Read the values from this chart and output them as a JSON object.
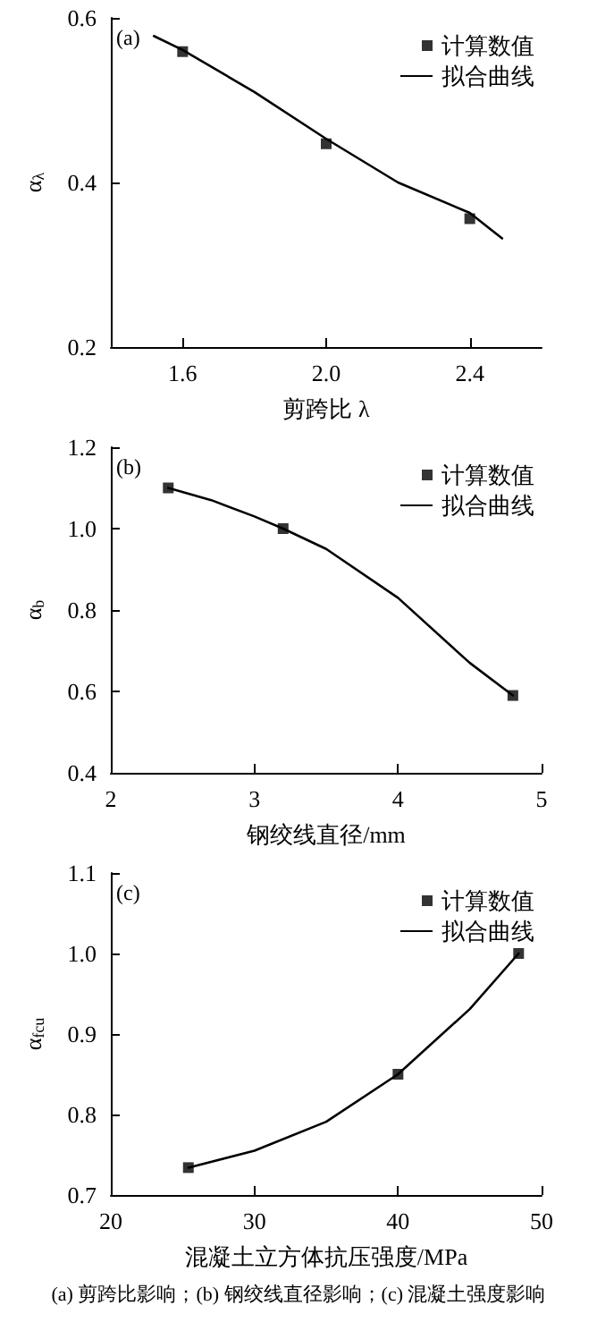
{
  "chart_data": [
    {
      "type": "line",
      "title": "(a)",
      "xlabel": "剪跨比 λ",
      "ylabel": "α$_{λ}$",
      "xlim": [
        1.4,
        2.6
      ],
      "xticks": [
        1.6,
        {
          "value": 2,
          "label": "2.0"
        },
        2.4
      ],
      "ylim": [
        0.2,
        0.6
      ],
      "yticks": [
        0.2,
        0.4,
        0.6
      ],
      "grid": false,
      "legend": "top right",
      "series": [
        {
          "name": "计算数值",
          "type": "scatter",
          "marker": "square",
          "color": "#000000",
          "x": [
            1.6,
            2.0,
            2.4
          ],
          "values": [
            0.559,
            0.447,
            0.356
          ]
        },
        {
          "name": "拟合曲线",
          "type": "line",
          "marker": "none",
          "line_style": "solid",
          "color": "#000000",
          "x": [
            1.52,
            1.6,
            1.8,
            2.0,
            2.2,
            2.4,
            2.49
          ],
          "values": [
            0.578,
            0.561,
            0.51,
            0.453,
            0.4,
            0.363,
            0.332
          ]
        }
      ]
    },
    {
      "type": "line",
      "title": "(b)",
      "xlabel": "钢绞线直径/mm",
      "ylabel": "α$_{b}$",
      "xlim": [
        2,
        5
      ],
      "xticks": [
        2,
        3,
        4,
        5
      ],
      "ylim": [
        0.4,
        1.2
      ],
      "yticks": [
        0.4,
        0.6,
        0.8,
        {
          "value": 1,
          "label": "1.0"
        },
        1.2
      ],
      "grid": false,
      "legend": "top right",
      "series": [
        {
          "name": "计算数值",
          "type": "scatter",
          "marker": "square",
          "color": "#000000",
          "x": [
            2.4,
            3.2,
            4.8
          ],
          "values": [
            1.1,
            1.0,
            0.59
          ]
        },
        {
          "name": "拟合曲线",
          "type": "line",
          "marker": "none",
          "line_style": "solid",
          "color": "#000000",
          "x": [
            2.4,
            2.7,
            3.0,
            3.2,
            3.5,
            4.0,
            4.5,
            4.8
          ],
          "values": [
            1.1,
            1.07,
            1.03,
            1.0,
            0.95,
            0.83,
            0.67,
            0.59
          ]
        }
      ]
    },
    {
      "type": "line",
      "title": "(c)",
      "xlabel": "混凝土立方体抗压强度/MPa",
      "ylabel": "α$_{fcu}$",
      "xlim": [
        20,
        50
      ],
      "xticks": [
        20,
        30,
        40,
        50
      ],
      "ylim": [
        0.7,
        1.1
      ],
      "yticks": [
        0.7,
        0.8,
        0.9,
        {
          "value": 1,
          "label": "1.0"
        },
        1.1
      ],
      "grid": false,
      "legend": "top right",
      "annotations": [
        "(a) 剪跨比影响；(b) 钢绞线直径影响；(c) 混凝土强度影响"
      ],
      "series": [
        {
          "name": "计算数值",
          "type": "scatter",
          "marker": "square",
          "color": "#000000",
          "x": [
            25.4,
            40,
            48.4
          ],
          "values": [
            0.734,
            0.85,
            1.0
          ]
        },
        {
          "name": "拟合曲线",
          "type": "line",
          "marker": "none",
          "line_style": "solid",
          "color": "#000000",
          "x": [
            25.4,
            30,
            35,
            40,
            45,
            48.4
          ],
          "values": [
            0.734,
            0.755,
            0.791,
            0.85,
            0.931,
            1.0
          ]
        }
      ]
    }
  ]
}
